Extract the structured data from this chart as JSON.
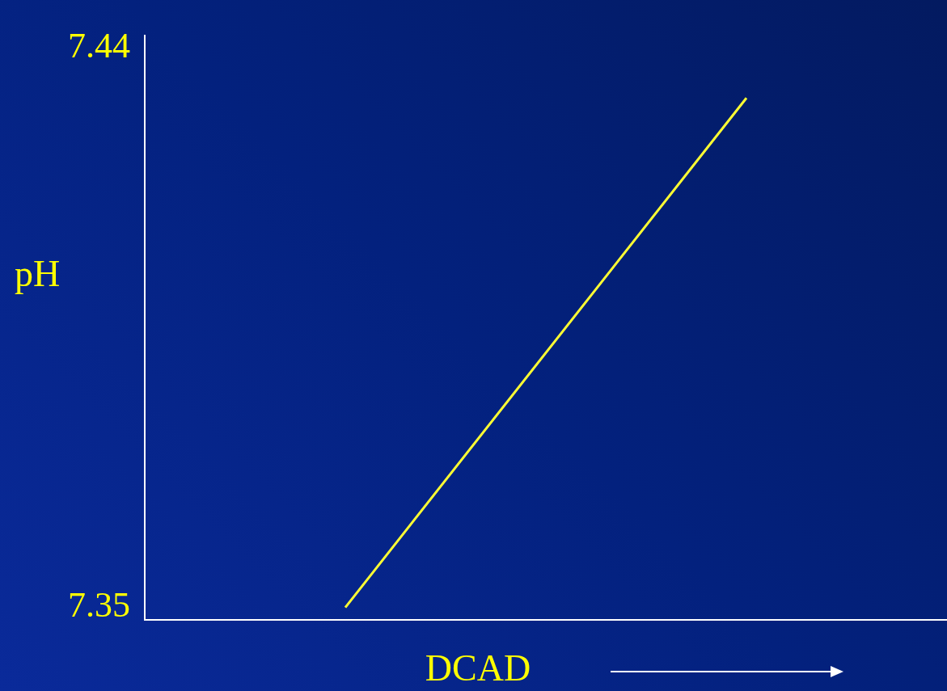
{
  "chart_data": {
    "type": "line",
    "xlabel": "DCAD",
    "ylabel": "pH",
    "categories": [
      null,
      null
    ],
    "series": [
      {
        "color": "#ffff33",
        "values": [
          7.35,
          7.432
        ]
      }
    ],
    "ylim": [
      7.348,
      7.442
    ],
    "yticks": [
      7.35,
      7.44
    ],
    "tick_labels": "y",
    "grid": false,
    "legend": false,
    "marker": "none",
    "line_style": "solid"
  }
}
